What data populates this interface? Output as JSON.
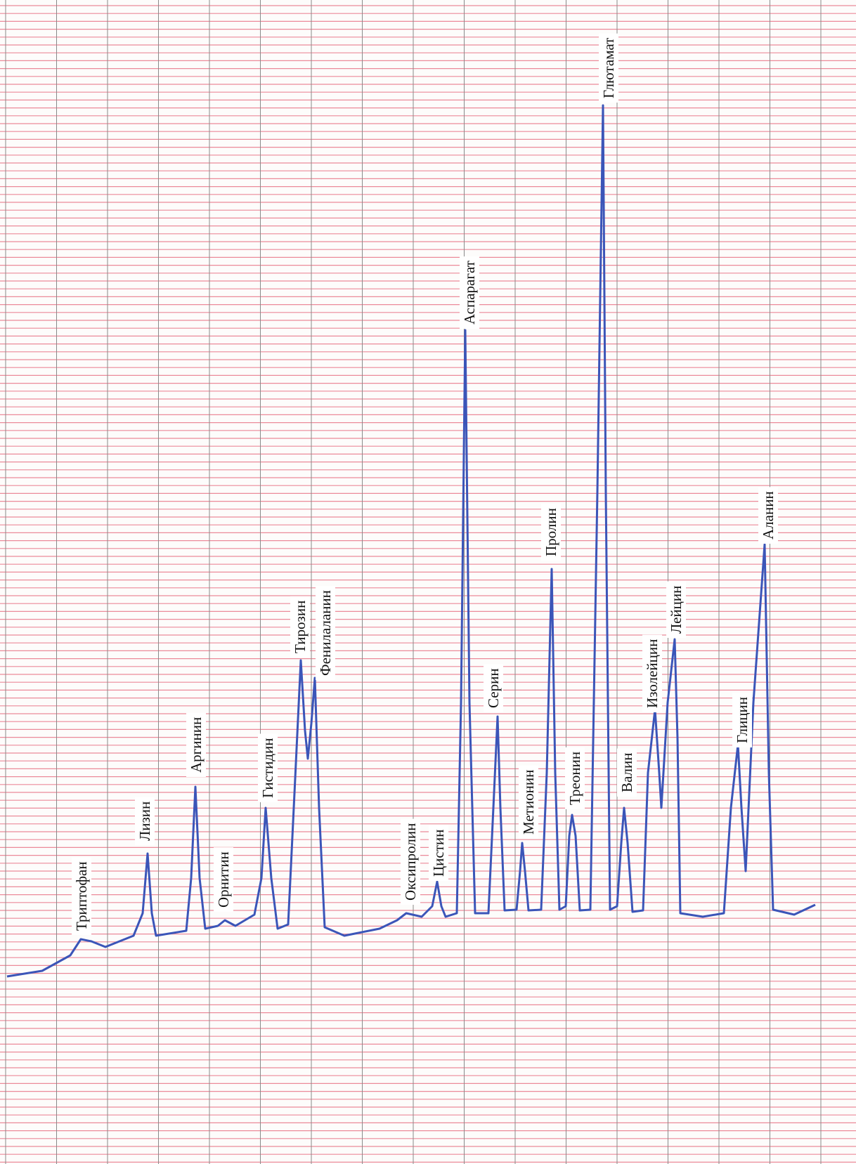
{
  "peaks": [
    "Триптофан",
    "Лизин",
    "Аргинин",
    "Орнитин",
    "Гистидин",
    "Тирозин",
    "Фенилаланин",
    "Оксипролин",
    "Цистин",
    "Аспарагат",
    "Серин",
    "Метионин",
    "Пролин",
    "Треонин",
    "Глютамат",
    "Валин",
    "Изолейцин",
    "Лейцин",
    "Глицин",
    "Аланин"
  ]
}
